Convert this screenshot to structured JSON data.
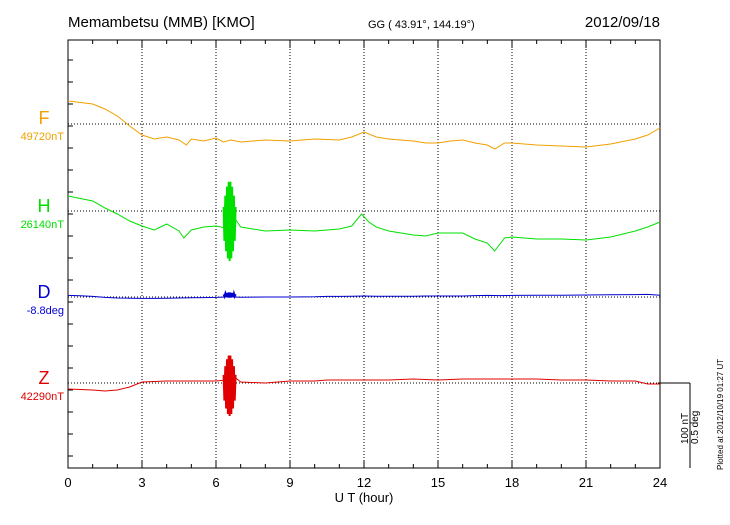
{
  "header": {
    "station": "Memambetsu (MMB)  [KMO]",
    "coords": "GG ( 43.91°, 144.19°)",
    "date": "2012/09/18"
  },
  "side_note": "Plotted at 2012/10/19 01:27 UT",
  "scale_note": [
    "100 nT",
    "0.5 deg"
  ],
  "chart_data": {
    "type": "line",
    "title": "",
    "xlabel": "U T (hour)",
    "ylabel": "",
    "xlim": [
      0,
      24
    ],
    "xticks": [
      0,
      3,
      6,
      9,
      12,
      15,
      18,
      21,
      24
    ],
    "grid": true,
    "units_note": "vertical scale bar: 100 nT / 0.5 deg",
    "series": [
      {
        "name": "F",
        "baseline_label": "49720nT",
        "baseline": 49720,
        "unit": "nT",
        "color": "#f0a000",
        "x": [
          0,
          1,
          1.5,
          2,
          2.5,
          3,
          3.5,
          4,
          4.5,
          4.8,
          5,
          5.5,
          6,
          6.3,
          6.6,
          7,
          7.5,
          8,
          9,
          10,
          11,
          11.5,
          12,
          12.5,
          13,
          14,
          14.5,
          15,
          15.5,
          16,
          16.5,
          17,
          17.3,
          17.7,
          18,
          19,
          20,
          21,
          22,
          23,
          23.5,
          24
        ],
        "y": [
          49743,
          49740,
          49735,
          49728,
          49718,
          49709,
          49705,
          49707,
          49704,
          49699,
          49705,
          49703,
          49706,
          49702,
          49704,
          49702,
          49703,
          49704,
          49703,
          49705,
          49704,
          49707,
          49712,
          49707,
          49705,
          49703,
          49701,
          49701,
          49703,
          49704,
          49701,
          49699,
          49695,
          49701,
          49701,
          49699,
          49698,
          49697,
          49700,
          49705,
          49709,
          49716
        ]
      },
      {
        "name": "H",
        "baseline_label": "26140nT",
        "baseline": 26140,
        "unit": "nT",
        "color": "#00e000",
        "x": [
          0,
          1,
          1.5,
          2,
          2.5,
          3,
          3.5,
          4,
          4.5,
          4.7,
          5,
          5.5,
          6,
          6.4,
          6.55,
          6.75,
          7,
          8,
          9,
          10,
          11,
          11.5,
          11.9,
          12.2,
          12.5,
          13,
          14,
          14.5,
          15,
          16,
          16.5,
          17,
          17.3,
          17.7,
          18,
          19,
          20,
          21,
          22,
          23,
          23.5,
          24
        ],
        "y": [
          26155,
          26150,
          26143,
          26137,
          26130,
          26125,
          26121,
          26127,
          26120,
          26113,
          26121,
          26124,
          26125,
          26123,
          26104,
          26133,
          26124,
          26120,
          26121,
          26120,
          26122,
          26125,
          26137,
          26129,
          26124,
          26120,
          26116,
          26115,
          26118,
          26118,
          26112,
          26108,
          26100,
          26113,
          26114,
          26112,
          26112,
          26111,
          26114,
          26120,
          26124,
          26129
        ]
      },
      {
        "name": "D",
        "baseline_label": "-8.8deg",
        "baseline": -8.8,
        "unit": "deg",
        "color": "#0000d0",
        "x": [
          0,
          0.5,
          1,
          1.5,
          2,
          2.5,
          3,
          3.5,
          4,
          4.5,
          5,
          5.5,
          6,
          6.4,
          6.55,
          6.7,
          7,
          8,
          9,
          10,
          10.5,
          11,
          11.5,
          12,
          12.5,
          13,
          14,
          14.5,
          15,
          16,
          16.5,
          17,
          17.5,
          18,
          19,
          20,
          21,
          22,
          23,
          23.5,
          24
        ],
        "y": [
          -8.792,
          -8.794,
          -8.797,
          -8.802,
          -8.805,
          -8.806,
          -8.807,
          -8.807,
          -8.806,
          -8.805,
          -8.804,
          -8.803,
          -8.802,
          -8.8,
          -8.783,
          -8.8,
          -8.801,
          -8.8,
          -8.8,
          -8.799,
          -8.797,
          -8.797,
          -8.796,
          -8.795,
          -8.796,
          -8.796,
          -8.796,
          -8.795,
          -8.795,
          -8.795,
          -8.793,
          -8.792,
          -8.793,
          -8.792,
          -8.791,
          -8.791,
          -8.79,
          -8.789,
          -8.788,
          -8.787,
          -8.791
        ]
      },
      {
        "name": "Z",
        "baseline_label": "42290nT",
        "baseline": 42290,
        "unit": "nT",
        "color": "#e00000",
        "x": [
          0,
          1,
          1.5,
          2,
          2.5,
          3,
          4,
          5,
          6,
          6.4,
          6.55,
          6.75,
          7,
          8,
          9,
          10,
          10.5,
          11,
          12,
          13,
          14,
          15,
          16,
          17,
          18,
          19,
          20,
          21,
          22,
          23,
          23.5,
          24
        ],
        "y": [
          42284,
          42283,
          42282,
          42283,
          42286,
          42291,
          42292,
          42292,
          42292,
          42293,
          42282,
          42296,
          42291,
          42290,
          42292,
          42292,
          42293,
          42293,
          42293,
          42293,
          42294,
          42293,
          42294,
          42294,
          42294,
          42294,
          42293,
          42293,
          42292,
          42292,
          42289,
          42289
        ]
      }
    ],
    "bursts": [
      {
        "series": "H",
        "time": 6.55,
        "high": 26170,
        "low": 26090
      },
      {
        "series": "D",
        "time": 6.55,
        "high": -8.778,
        "low": -8.803
      },
      {
        "series": "Z",
        "time": 6.55,
        "high": 42318,
        "low": 42257
      }
    ]
  }
}
